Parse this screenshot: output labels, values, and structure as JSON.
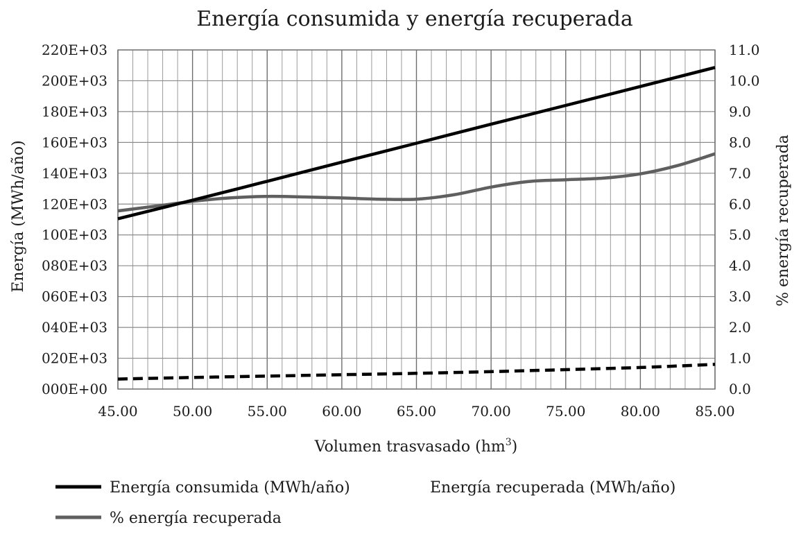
{
  "chart_data": {
    "type": "line",
    "title": "Energía consumida y energía recuperada",
    "xlabel": "Volumen trasvasado (hm",
    "xlabel_sup": "3",
    "xlabel_close": ")",
    "ylabel": "Energía (MWh/año)",
    "y2label": "% energía recuperada",
    "xlim": [
      45,
      85
    ],
    "ylim": [
      0,
      220000
    ],
    "y2lim": [
      0,
      11
    ],
    "x_ticks": [
      45,
      50,
      55,
      60,
      65,
      70,
      75,
      80,
      85
    ],
    "x_tick_labels": [
      "45.00",
      "50.00",
      "55.00",
      "60.00",
      "65.00",
      "70.00",
      "75.00",
      "80.00",
      "85.00"
    ],
    "x_minor_step": 1,
    "y_ticks": [
      0,
      20000,
      40000,
      60000,
      80000,
      100000,
      120000,
      140000,
      160000,
      180000,
      200000,
      220000
    ],
    "y_tick_labels": [
      "000E+00",
      "020E+03",
      "040E+03",
      "060E+03",
      "080E+03",
      "100E+03",
      "120E+03",
      "140E+03",
      "160E+03",
      "180E+03",
      "200E+03",
      "220E+03"
    ],
    "y2_ticks": [
      0,
      1,
      2,
      3,
      4,
      5,
      6,
      7,
      8,
      9,
      10,
      11
    ],
    "y2_tick_labels": [
      "0.0",
      "1.0",
      "2.0",
      "3.0",
      "4.0",
      "5.0",
      "6.0",
      "7.0",
      "8.0",
      "9.0",
      "10.0",
      "11.0"
    ],
    "grid": true,
    "legend_position": "bottom",
    "series": [
      {
        "name": "Energía consumida (MWh/año)",
        "axis": "left",
        "style": "solid",
        "color": "#000000",
        "x": [
          45,
          50,
          55,
          60,
          65,
          70,
          75,
          80,
          85
        ],
        "values": [
          110500,
          122500,
          134800,
          147200,
          159500,
          171800,
          184000,
          196300,
          208600
        ]
      },
      {
        "name": "Energía recuperada (MWh/año)",
        "axis": "left",
        "style": "dashed",
        "color": "#000000",
        "x": [
          45,
          50,
          55,
          60,
          65,
          70,
          75,
          80,
          85
        ],
        "values": [
          6500,
          7500,
          8400,
          9300,
          10200,
          11300,
          12600,
          14000,
          16000
        ]
      },
      {
        "name": "% energía recuperada",
        "axis": "right",
        "style": "solid",
        "color": "#5f5f5f",
        "x": [
          45,
          47.5,
          50,
          52.5,
          55,
          57.5,
          60,
          62.5,
          65,
          67.5,
          70,
          72.5,
          75,
          77.5,
          80,
          82.5,
          85
        ],
        "values": [
          5.78,
          5.93,
          6.09,
          6.2,
          6.25,
          6.23,
          6.2,
          6.16,
          6.16,
          6.3,
          6.55,
          6.73,
          6.79,
          6.84,
          6.98,
          7.25,
          7.63
        ]
      }
    ],
    "legend": [
      {
        "label": "Energía consumida (MWh/año)",
        "swatch": "solid-black"
      },
      {
        "label": "Energía recuperada (MWh/año)",
        "swatch": "none"
      },
      {
        "label": "% energía recuperada",
        "swatch": "solid-gray"
      }
    ]
  }
}
